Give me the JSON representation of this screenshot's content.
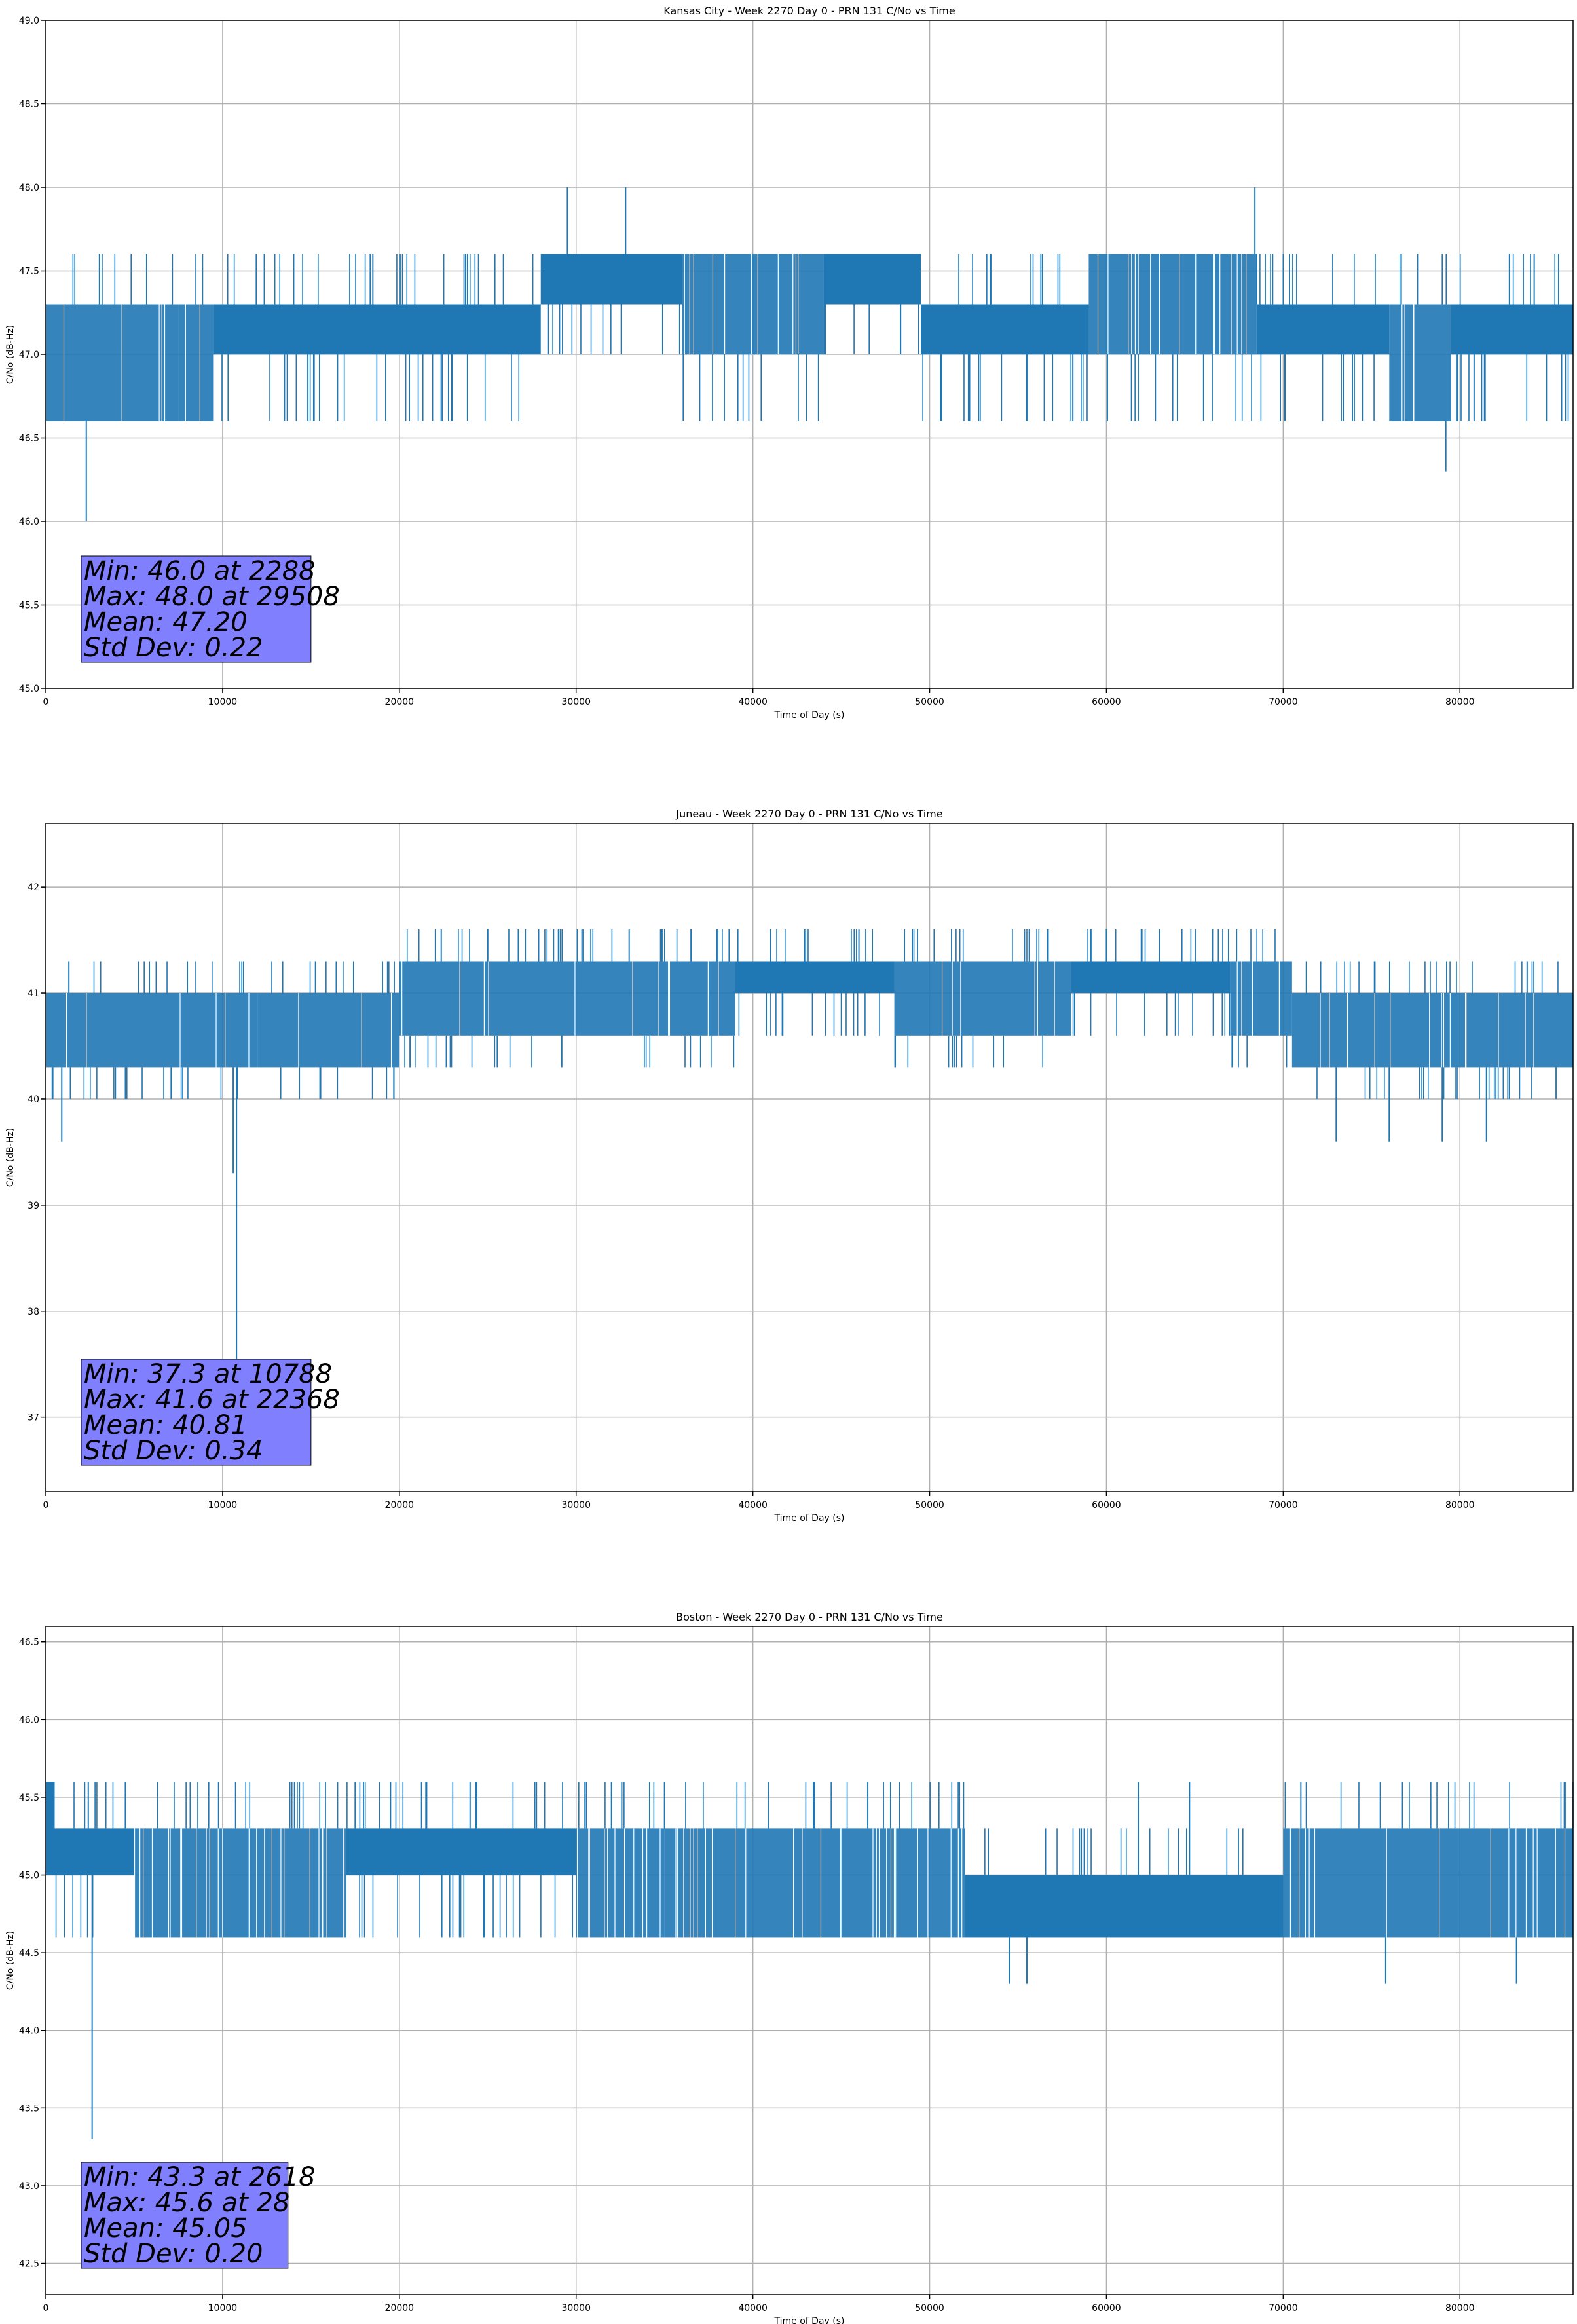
{
  "style": {
    "series_color": "#1f77b4",
    "stats_box_color": "#8080ff",
    "grid_color": "#b0b0b0"
  },
  "chart_data": [
    {
      "type": "line",
      "title": "Kansas City - Week 2270 Day 0 - PRN 131 C/No vs Time",
      "xlabel": "Time of Day (s)",
      "ylabel": "C/No (dB-Hz)",
      "xlim": [
        0,
        86400
      ],
      "ylim": [
        45.0,
        49.0
      ],
      "grid": true,
      "xticks": [
        0,
        10000,
        20000,
        30000,
        40000,
        50000,
        60000,
        70000,
        80000
      ],
      "yticks": [
        45.0,
        45.5,
        46.0,
        46.5,
        47.0,
        47.5,
        48.0,
        48.5,
        49.0
      ],
      "ytick_labels": [
        "45.0",
        "45.5",
        "46.0",
        "46.5",
        "47.0",
        "47.5",
        "48.0",
        "48.5",
        "49.0"
      ],
      "stats": [
        "Min: 46.0 at 2288",
        "Max: 48.0 at 29508",
        "Mean: 47.20",
        "Std Dev: 0.22"
      ],
      "band_levels": [
        46.6,
        47.0,
        47.3,
        47.6
      ],
      "band_segments": [
        {
          "x0": 0,
          "x1": 1500,
          "lo": 46.6,
          "hi": 47.3,
          "density": 0.7
        },
        {
          "x0": 1500,
          "x1": 7500,
          "lo": 46.6,
          "hi": 47.3,
          "density": 0.85
        },
        {
          "x0": 7500,
          "x1": 9500,
          "lo": 46.6,
          "hi": 47.3,
          "density": 0.85
        },
        {
          "x0": 9500,
          "x1": 28000,
          "lo": 47.0,
          "hi": 47.3,
          "density": 1
        },
        {
          "x0": 28000,
          "x1": 36000,
          "lo": 47.3,
          "hi": 47.6,
          "density": 1
        },
        {
          "x0": 36000,
          "x1": 44000,
          "lo": 47.0,
          "hi": 47.6,
          "density": 0.6
        },
        {
          "x0": 44000,
          "x1": 49500,
          "lo": 47.3,
          "hi": 47.6,
          "density": 1
        },
        {
          "x0": 49500,
          "x1": 59000,
          "lo": 47.0,
          "hi": 47.3,
          "density": 1
        },
        {
          "x0": 59000,
          "x1": 68500,
          "lo": 47.0,
          "hi": 47.6,
          "density": 0.6
        },
        {
          "x0": 68500,
          "x1": 76000,
          "lo": 47.0,
          "hi": 47.3,
          "density": 1
        },
        {
          "x0": 76000,
          "x1": 79500,
          "lo": 46.6,
          "hi": 47.3,
          "density": 0.7
        },
        {
          "x0": 79500,
          "x1": 86400,
          "lo": 47.0,
          "hi": 47.3,
          "density": 1
        }
      ],
      "spikes": [
        {
          "x": 2288,
          "y": 46.0
        },
        {
          "x": 29508,
          "y": 48.0
        },
        {
          "x": 32800,
          "y": 48.0
        },
        {
          "x": 68400,
          "y": 48.0
        },
        {
          "x": 79200,
          "y": 46.3
        },
        {
          "x": 18500,
          "y": 47.6
        },
        {
          "x": 25400,
          "y": 47.6
        },
        {
          "x": 13500,
          "y": 46.6
        },
        {
          "x": 16500,
          "y": 46.6
        },
        {
          "x": 52200,
          "y": 46.6
        },
        {
          "x": 58100,
          "y": 46.6
        },
        {
          "x": 70100,
          "y": 46.6
        },
        {
          "x": 80800,
          "y": 46.6
        },
        {
          "x": 82800,
          "y": 47.6
        },
        {
          "x": 84200,
          "y": 47.6
        }
      ]
    },
    {
      "type": "line",
      "title": "Juneau - Week 2270 Day 0 - PRN 131 C/No vs Time",
      "xlabel": "Time of Day (s)",
      "ylabel": "C/No (dB-Hz)",
      "xlim": [
        0,
        86400
      ],
      "ylim": [
        36.3,
        42.6
      ],
      "grid": true,
      "xticks": [
        0,
        10000,
        20000,
        30000,
        40000,
        50000,
        60000,
        70000,
        80000
      ],
      "yticks": [
        37,
        38,
        39,
        40,
        41,
        42
      ],
      "ytick_labels": [
        "37",
        "38",
        "39",
        "40",
        "41",
        "42"
      ],
      "stats": [
        "Min: 37.3 at 10788",
        "Max: 41.6 at 22368",
        "Mean: 40.81",
        "Std Dev: 0.34"
      ],
      "band_levels": [
        40.0,
        40.3,
        40.6,
        41.0,
        41.3,
        41.6
      ],
      "band_segments": [
        {
          "x0": 0,
          "x1": 12000,
          "lo": 40.3,
          "hi": 41.0,
          "density": 0.85
        },
        {
          "x0": 12000,
          "x1": 20000,
          "lo": 40.3,
          "hi": 41.0,
          "density": 0.9
        },
        {
          "x0": 20000,
          "x1": 39000,
          "lo": 40.6,
          "hi": 41.3,
          "density": 0.85
        },
        {
          "x0": 39000,
          "x1": 48000,
          "lo": 41.0,
          "hi": 41.3,
          "density": 1
        },
        {
          "x0": 48000,
          "x1": 58000,
          "lo": 40.6,
          "hi": 41.3,
          "density": 0.8
        },
        {
          "x0": 58000,
          "x1": 67000,
          "lo": 41.0,
          "hi": 41.3,
          "density": 1
        },
        {
          "x0": 67000,
          "x1": 70500,
          "lo": 40.6,
          "hi": 41.3,
          "density": 0.8
        },
        {
          "x0": 70500,
          "x1": 86400,
          "lo": 40.3,
          "hi": 41.0,
          "density": 0.85
        }
      ],
      "spikes": [
        {
          "x": 10788,
          "y": 37.3
        },
        {
          "x": 10600,
          "y": 39.3
        },
        {
          "x": 900,
          "y": 39.6
        },
        {
          "x": 22368,
          "y": 41.6
        },
        {
          "x": 25000,
          "y": 41.6
        },
        {
          "x": 29000,
          "y": 41.6
        },
        {
          "x": 33000,
          "y": 41.6
        },
        {
          "x": 36500,
          "y": 41.6
        },
        {
          "x": 41000,
          "y": 41.6
        },
        {
          "x": 46000,
          "y": 41.6
        },
        {
          "x": 60000,
          "y": 41.6
        },
        {
          "x": 63000,
          "y": 41.6
        },
        {
          "x": 66000,
          "y": 41.6
        },
        {
          "x": 73000,
          "y": 39.6
        },
        {
          "x": 76000,
          "y": 39.6
        },
        {
          "x": 79000,
          "y": 39.6
        },
        {
          "x": 81500,
          "y": 39.6
        },
        {
          "x": 83800,
          "y": 41.3
        }
      ]
    },
    {
      "type": "line",
      "title": "Boston - Week 2270 Day 0 - PRN 131 C/No vs Time",
      "xlabel": "Time of Day (s)",
      "ylabel": "C/No (dB-Hz)",
      "xlim": [
        0,
        86400
      ],
      "ylim": [
        42.3,
        46.6
      ],
      "grid": true,
      "xticks": [
        0,
        10000,
        20000,
        30000,
        40000,
        50000,
        60000,
        70000,
        80000
      ],
      "yticks": [
        42.5,
        43.0,
        43.5,
        44.0,
        44.5,
        45.0,
        45.5,
        46.0,
        46.5
      ],
      "ytick_labels": [
        "42.5",
        "43.0",
        "43.5",
        "44.0",
        "44.5",
        "45.0",
        "45.5",
        "46.0",
        "46.5"
      ],
      "stats": [
        "Min: 43.3 at 2618",
        "Max: 45.6 at 28",
        "Mean: 45.05",
        "Std Dev: 0.20"
      ],
      "band_levels": [
        44.6,
        45.0,
        45.3,
        45.6
      ],
      "band_segments": [
        {
          "x0": 0,
          "x1": 500,
          "lo": 45.0,
          "hi": 45.6,
          "density": 1
        },
        {
          "x0": 500,
          "x1": 5000,
          "lo": 45.0,
          "hi": 45.3,
          "density": 1
        },
        {
          "x0": 5000,
          "x1": 17000,
          "lo": 44.6,
          "hi": 45.3,
          "density": 0.6
        },
        {
          "x0": 17000,
          "x1": 30000,
          "lo": 45.0,
          "hi": 45.3,
          "density": 1
        },
        {
          "x0": 30000,
          "x1": 35000,
          "lo": 44.6,
          "hi": 45.3,
          "density": 0.7
        },
        {
          "x0": 35000,
          "x1": 52000,
          "lo": 44.6,
          "hi": 45.3,
          "density": 0.7
        },
        {
          "x0": 52000,
          "x1": 70000,
          "lo": 44.6,
          "hi": 45.0,
          "density": 1
        },
        {
          "x0": 70000,
          "x1": 86400,
          "lo": 44.6,
          "hi": 45.3,
          "density": 0.85
        }
      ],
      "spikes": [
        {
          "x": 2618,
          "y": 43.3
        },
        {
          "x": 28,
          "y": 45.6
        },
        {
          "x": 2400,
          "y": 45.6
        },
        {
          "x": 4500,
          "y": 45.6
        },
        {
          "x": 17500,
          "y": 45.6
        },
        {
          "x": 19500,
          "y": 45.6
        },
        {
          "x": 21500,
          "y": 45.6
        },
        {
          "x": 24000,
          "y": 45.6
        },
        {
          "x": 30500,
          "y": 45.6
        },
        {
          "x": 32000,
          "y": 45.6
        },
        {
          "x": 35000,
          "y": 45.6
        },
        {
          "x": 46500,
          "y": 45.6
        },
        {
          "x": 54500,
          "y": 44.3
        },
        {
          "x": 55500,
          "y": 44.3
        },
        {
          "x": 61800,
          "y": 45.6
        },
        {
          "x": 64700,
          "y": 45.6
        },
        {
          "x": 71000,
          "y": 45.6
        },
        {
          "x": 75800,
          "y": 44.3
        },
        {
          "x": 83200,
          "y": 44.3
        },
        {
          "x": 22400,
          "y": 44.6
        }
      ]
    }
  ]
}
